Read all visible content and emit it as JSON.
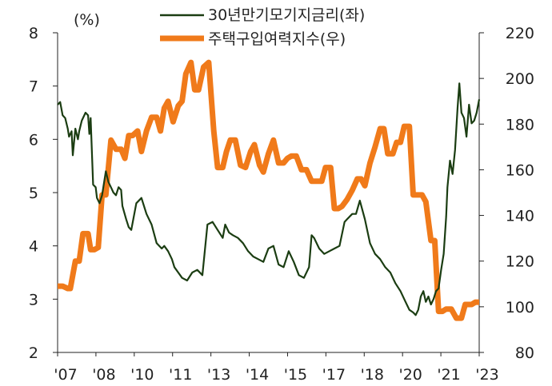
{
  "chart_data": {
    "type": "line",
    "unit_label": "(%)",
    "x_tick_labels": [
      "'07",
      "'08",
      "'10",
      "'11",
      "'13",
      "'14",
      "'15",
      "'17",
      "'18",
      "'20",
      "'21",
      "'23"
    ],
    "x_range": [
      2007.0,
      2023.6
    ],
    "y_left": {
      "ticks": [
        "2",
        "3",
        "4",
        "5",
        "6",
        "7",
        "8"
      ],
      "range": [
        2,
        8
      ]
    },
    "y_right": {
      "ticks": [
        "80",
        "100",
        "120",
        "140",
        "160",
        "180",
        "200",
        "220"
      ],
      "range": [
        80,
        220
      ]
    },
    "grid": false,
    "legend_position": "top-center",
    "series": [
      {
        "name": "30년만기모기지금리(좌)",
        "axis": "left",
        "color": "#1b3d12",
        "x": [
          2007.0,
          2007.1,
          2007.2,
          2007.3,
          2007.4,
          2007.45,
          2007.55,
          2007.6,
          2007.7,
          2007.8,
          2007.85,
          2007.95,
          2008.1,
          2008.2,
          2008.25,
          2008.3,
          2008.4,
          2008.5,
          2008.55,
          2008.65,
          2008.75,
          2008.9,
          2009.0,
          2009.1,
          2009.2,
          2009.3,
          2009.4,
          2009.5,
          2009.55,
          2009.7,
          2009.8,
          2009.9,
          2010.1,
          2010.3,
          2010.5,
          2010.7,
          2010.9,
          2011.1,
          2011.2,
          2011.35,
          2011.5,
          2011.6,
          2011.75,
          2011.9,
          2012.1,
          2012.3,
          2012.5,
          2012.7,
          2012.9,
          2013.1,
          2013.3,
          2013.5,
          2013.6,
          2013.75,
          2013.9,
          2014.1,
          2014.3,
          2014.5,
          2014.7,
          2014.9,
          2015.1,
          2015.3,
          2015.5,
          2015.7,
          2015.9,
          2016.1,
          2016.3,
          2016.5,
          2016.7,
          2016.9,
          2017.0,
          2017.1,
          2017.3,
          2017.5,
          2017.7,
          2017.9,
          2018.1,
          2018.3,
          2018.4,
          2018.6,
          2018.75,
          2018.9,
          2019.1,
          2019.3,
          2019.5,
          2019.7,
          2019.9,
          2020.1,
          2020.3,
          2020.5,
          2020.7,
          2020.85,
          2021.0,
          2021.1,
          2021.2,
          2021.3,
          2021.4,
          2021.5,
          2021.6,
          2021.7,
          2021.8,
          2021.9,
          2022.0,
          2022.1,
          2022.2,
          2022.3,
          2022.35,
          2022.45,
          2022.55,
          2022.65,
          2022.75,
          2022.82,
          2022.9,
          2023.0,
          2023.1,
          2023.2,
          2023.3,
          2023.4,
          2023.5,
          2023.6
        ],
        "values": [
          6.65,
          6.7,
          6.45,
          6.4,
          6.2,
          6.05,
          6.15,
          5.7,
          6.2,
          6.0,
          6.15,
          6.35,
          6.5,
          6.45,
          6.1,
          6.4,
          5.15,
          5.1,
          4.9,
          4.8,
          4.95,
          5.4,
          5.2,
          5.1,
          5.0,
          4.95,
          5.1,
          5.05,
          4.75,
          4.5,
          4.35,
          4.3,
          4.8,
          4.9,
          4.6,
          4.4,
          4.05,
          3.95,
          4.0,
          3.9,
          3.75,
          3.6,
          3.5,
          3.4,
          3.35,
          3.5,
          3.55,
          3.45,
          4.4,
          4.45,
          4.3,
          4.15,
          4.4,
          4.25,
          4.2,
          4.15,
          4.05,
          3.9,
          3.8,
          3.75,
          3.7,
          3.95,
          4.0,
          3.65,
          3.6,
          3.9,
          3.7,
          3.45,
          3.4,
          3.6,
          4.2,
          4.15,
          3.95,
          3.85,
          3.9,
          3.95,
          4.0,
          4.45,
          4.5,
          4.6,
          4.6,
          4.85,
          4.5,
          4.05,
          3.85,
          3.75,
          3.6,
          3.5,
          3.3,
          3.15,
          2.95,
          2.8,
          2.75,
          2.7,
          2.8,
          3.05,
          3.15,
          2.95,
          3.05,
          2.9,
          3.0,
          3.15,
          3.2,
          3.55,
          3.85,
          4.55,
          5.1,
          5.6,
          5.35,
          5.8,
          6.6,
          7.05,
          6.5,
          6.4,
          6.05,
          6.65,
          6.3,
          6.35,
          6.5,
          6.75
        ]
      },
      {
        "name": "주택구입여력지수(우)",
        "axis": "right",
        "color": "#f07a1a",
        "x": [
          2007.0,
          2007.2,
          2007.4,
          2007.5,
          2007.7,
          2007.85,
          2008.0,
          2008.2,
          2008.3,
          2008.45,
          2008.6,
          2008.75,
          2008.9,
          2009.1,
          2009.3,
          2009.5,
          2009.65,
          2009.8,
          2009.95,
          2010.15,
          2010.3,
          2010.5,
          2010.7,
          2010.9,
          2011.05,
          2011.2,
          2011.35,
          2011.55,
          2011.75,
          2011.9,
          2012.05,
          2012.25,
          2012.4,
          2012.55,
          2012.75,
          2012.95,
          2013.15,
          2013.3,
          2013.5,
          2013.65,
          2013.8,
          2014.0,
          2014.2,
          2014.4,
          2014.6,
          2014.75,
          2014.95,
          2015.1,
          2015.3,
          2015.5,
          2015.7,
          2015.9,
          2016.05,
          2016.2,
          2016.4,
          2016.6,
          2016.8,
          2017.0,
          2017.2,
          2017.4,
          2017.55,
          2017.75,
          2017.9,
          2018.05,
          2018.2,
          2018.4,
          2018.6,
          2018.8,
          2018.95,
          2019.1,
          2019.3,
          2019.5,
          2019.7,
          2019.85,
          2020.0,
          2020.2,
          2020.35,
          2020.5,
          2020.65,
          2020.85,
          2021.0,
          2021.15,
          2021.35,
          2021.5,
          2021.7,
          2021.85,
          2022.0,
          2022.15,
          2022.3,
          2022.5,
          2022.7,
          2022.9,
          2023.05,
          2023.2,
          2023.3,
          2023.45,
          2023.6
        ],
        "values": [
          109,
          109,
          108,
          108,
          120,
          120,
          132,
          132,
          125,
          125,
          126,
          149,
          149,
          173,
          169,
          169,
          165,
          175,
          175,
          177,
          168,
          177,
          183,
          183,
          177,
          187,
          190,
          181,
          188,
          190,
          202,
          207,
          195,
          195,
          205,
          207,
          177,
          161,
          161,
          168,
          173,
          173,
          162,
          161,
          168,
          171,
          162,
          159,
          167,
          173,
          163,
          163,
          165,
          166,
          166,
          160,
          160,
          155,
          155,
          155,
          161,
          161,
          143,
          143,
          144,
          147,
          151,
          156,
          156,
          153,
          163,
          170,
          178,
          178,
          167,
          167,
          172,
          172,
          179,
          179,
          149,
          149,
          149,
          146,
          129,
          129,
          98,
          98,
          99,
          99,
          95,
          95,
          101,
          101,
          101,
          102,
          102
        ]
      }
    ]
  }
}
